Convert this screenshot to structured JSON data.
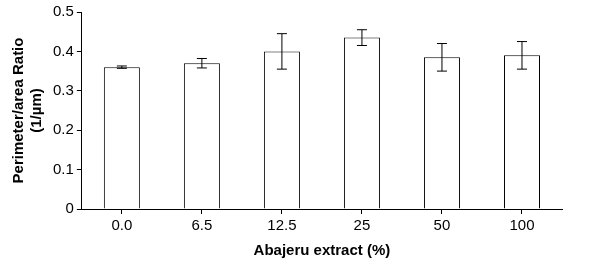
{
  "chart_data": {
    "type": "bar",
    "x_label": "Abajeru extract (%)",
    "y_label": [
      "Perimeter/area Ratio",
      "(1/µm)"
    ],
    "categories": [
      "0.0",
      "6.5",
      "12.5",
      "25",
      "50",
      "100"
    ],
    "values": [
      0.36,
      0.37,
      0.4,
      0.435,
      0.385,
      0.39
    ],
    "errors": [
      0.003,
      0.012,
      0.045,
      0.02,
      0.035,
      0.035
    ],
    "color": "#ffffff",
    "ylim": [
      0,
      0.5
    ],
    "yticks": [
      0,
      0.1,
      0.2,
      0.3,
      0.4,
      0.5
    ],
    "grid": false
  }
}
